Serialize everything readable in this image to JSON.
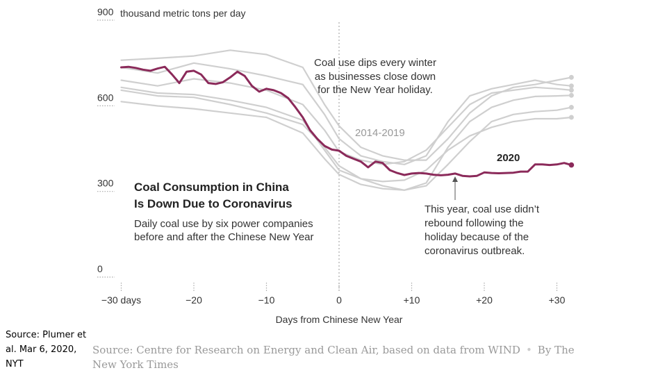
{
  "chart_data": {
    "type": "line",
    "title": "Coal Consumption in China Is Down Due to Coronavirus",
    "title_lines": [
      "Coal Consumption in China",
      "Is Down Due to Coronavirus"
    ],
    "subtitle_lines": [
      "Daily coal use by six power companies",
      "before and after the Chinese New Year"
    ],
    "ylabel": "thousand metric tons per day",
    "xlabel": "Days from Chinese New Year",
    "ylim": [
      0,
      900
    ],
    "xlim": [
      -31,
      32
    ],
    "yticks": [
      {
        "value": 0,
        "label": "0"
      },
      {
        "value": 300,
        "label": "300"
      },
      {
        "value": 600,
        "label": "600"
      },
      {
        "value": 900,
        "label": "900"
      }
    ],
    "xticks": [
      {
        "value": -30,
        "label": "−30 days"
      },
      {
        "value": -20,
        "label": "−20"
      },
      {
        "value": -10,
        "label": "−10"
      },
      {
        "value": 0,
        "label": "0"
      },
      {
        "value": 10,
        "label": "+10"
      },
      {
        "value": 20,
        "label": "+20"
      },
      {
        "value": 30,
        "label": "+30"
      }
    ],
    "annotations": {
      "winter": [
        "Coal use dips every winter",
        "as businesses close down",
        "for the New Year holiday."
      ],
      "period_label": "2014-2019",
      "current_label": "2020",
      "this_year": [
        "This year, coal use didn’t",
        "rebound following the",
        "holiday because of the",
        "coronavirus outbreak."
      ]
    },
    "series": [
      {
        "name": "2020",
        "color": "#8b2a5a",
        "x": [
          -30,
          -29,
          -28,
          -27,
          -26,
          -25,
          -24,
          -23,
          -22,
          -21,
          -20,
          -19,
          -18,
          -17,
          -16,
          -15,
          -14,
          -13,
          -12,
          -11,
          -10,
          -9,
          -8,
          -7,
          -6,
          -5,
          -4,
          -3,
          -2,
          -1,
          0,
          1,
          2,
          3,
          4,
          5,
          6,
          7,
          8,
          9,
          10,
          11,
          12,
          13,
          14,
          15,
          16,
          17,
          18,
          19,
          20,
          21,
          22,
          23,
          24,
          25,
          26,
          27,
          28,
          29,
          30,
          31,
          32
        ],
        "values": [
          720,
          722,
          718,
          712,
          708,
          716,
          722,
          695,
          665,
          705,
          708,
          695,
          665,
          662,
          668,
          685,
          705,
          690,
          655,
          635,
          645,
          640,
          630,
          612,
          580,
          545,
          500,
          470,
          445,
          432,
          428,
          410,
          400,
          390,
          370,
          390,
          385,
          360,
          350,
          343,
          348,
          350,
          348,
          344,
          342,
          344,
          348,
          340,
          338,
          340,
          352,
          350,
          349,
          350,
          351,
          355,
          355,
          380,
          380,
          378,
          380,
          385,
          378
        ]
      },
      {
        "name": "2014-2019 A",
        "color": "#cfcfcf",
        "x": [
          -30,
          -25,
          -20,
          -15,
          -10,
          -5,
          -2,
          0,
          3,
          6,
          9,
          12,
          15,
          18,
          21,
          24,
          27,
          30,
          32
        ],
        "values": [
          745,
          752,
          760,
          780,
          765,
          720,
          590,
          515,
          440,
          410,
          395,
          395,
          470,
          560,
          620,
          650,
          660,
          675,
          685
        ]
      },
      {
        "name": "2014-2019 B",
        "color": "#cfcfcf",
        "x": [
          -30,
          -25,
          -20,
          -15,
          -10,
          -5,
          -2,
          0,
          3,
          6,
          9,
          12,
          15,
          18,
          21,
          24,
          27,
          30,
          32
        ],
        "values": [
          720,
          700,
          735,
          715,
          690,
          660,
          555,
          470,
          410,
          390,
          380,
          410,
          530,
          620,
          645,
          660,
          675,
          660,
          655
        ]
      },
      {
        "name": "2014-2019 C",
        "color": "#cfcfcf",
        "x": [
          -30,
          -25,
          -20,
          -15,
          -10,
          -5,
          -2,
          0,
          3,
          6,
          9,
          12,
          15,
          18,
          21,
          24,
          27,
          30,
          32
        ],
        "values": [
          675,
          655,
          680,
          665,
          640,
          590,
          500,
          425,
          395,
          380,
          390,
          430,
          510,
          590,
          630,
          640,
          650,
          645,
          640
        ]
      },
      {
        "name": "2014-2019 D",
        "color": "#cfcfcf",
        "x": [
          -30,
          -25,
          -20,
          -15,
          -10,
          -5,
          -2,
          0,
          3,
          6,
          9,
          12,
          15,
          18,
          21,
          24,
          27,
          30,
          32
        ],
        "values": [
          640,
          620,
          615,
          590,
          560,
          520,
          440,
          375,
          330,
          305,
          290,
          315,
          440,
          530,
          580,
          605,
          618,
          620,
          622
        ]
      },
      {
        "name": "2014-2019 E",
        "color": "#cfcfcf",
        "x": [
          -30,
          -25,
          -20,
          -15,
          -10,
          -5,
          -2,
          0,
          3,
          6,
          9,
          12,
          15,
          18,
          21,
          24,
          27,
          30,
          32
        ],
        "values": [
          600,
          585,
          575,
          560,
          545,
          490,
          400,
          345,
          310,
          295,
          290,
          305,
          380,
          460,
          530,
          555,
          565,
          570,
          580
        ]
      },
      {
        "name": "2014-2019 F",
        "color": "#cfcfcf",
        "x": [
          -30,
          -25,
          -20,
          -15,
          -10,
          -5,
          -2,
          0,
          3,
          6,
          9,
          12,
          15,
          18,
          21,
          24,
          27,
          30,
          32
        ],
        "values": [
          650,
          630,
          625,
          605,
          580,
          535,
          430,
          360,
          330,
          320,
          325,
          360,
          430,
          480,
          510,
          530,
          540,
          540,
          545
        ]
      }
    ]
  },
  "source_note": "Source: Plumer et al. Mar 6, 2020, NYT",
  "source_credit": {
    "source": "Source: Centre for Research on Energy and Clean Air, based on data from WIND",
    "separator": "•",
    "byline": "By The New York Times"
  }
}
